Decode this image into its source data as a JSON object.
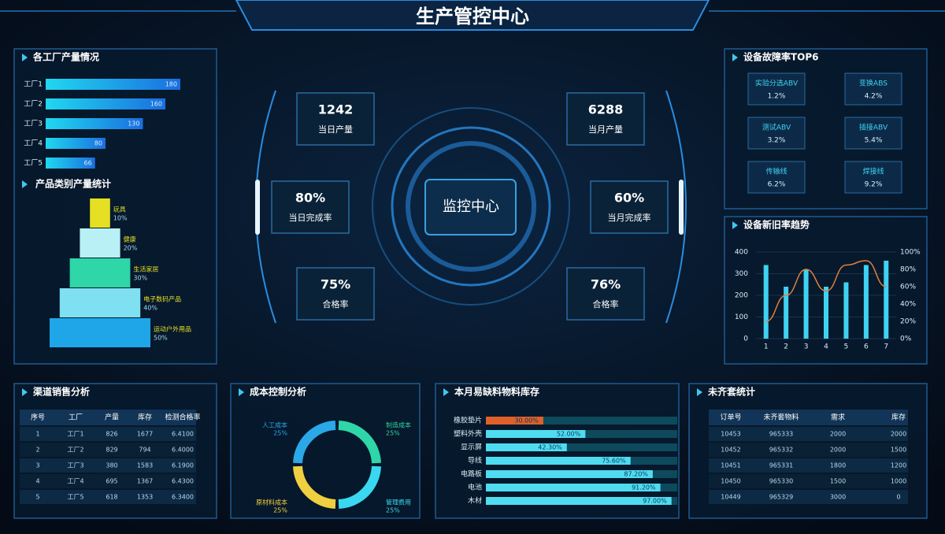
{
  "header": {
    "title": "生产管控中心"
  },
  "factory_output": {
    "title": "各工厂产量情况",
    "chart": {
      "type": "bar",
      "categories": [
        "工厂1",
        "工厂2",
        "工厂3",
        "工厂4",
        "工厂5"
      ],
      "values": [
        180,
        160,
        130,
        80,
        66
      ],
      "xlim": [
        0,
        200
      ]
    }
  },
  "product_category": {
    "title": "产品类别产量统计",
    "chart": {
      "type": "pyramid",
      "categories": [
        "玩具",
        "健康",
        "生活家居",
        "电子数码产品",
        "运动户外用品"
      ],
      "values": [
        10,
        20,
        30,
        40,
        50
      ],
      "value_labels": [
        "10%",
        "20%",
        "30%",
        "40%",
        "50%"
      ],
      "colors": [
        "#e6e024",
        "#b8f0f5",
        "#2ed6a8",
        "#7ee0f0",
        "#1ea6e8"
      ]
    }
  },
  "center": {
    "title": "监控中心",
    "kpis": [
      {
        "value": "1242",
        "label": "当日产量"
      },
      {
        "value": "6288",
        "label": "当月产量"
      },
      {
        "value": "80%",
        "label": "当日完成率"
      },
      {
        "value": "60%",
        "label": "当月完成率"
      },
      {
        "value": "75%",
        "label": "合格率"
      },
      {
        "value": "76%",
        "label": "合格率"
      }
    ]
  },
  "fault_rate": {
    "title": "设备故障率TOP6",
    "items": [
      {
        "name": "实验分选ABV",
        "value": "1.2%"
      },
      {
        "name": "变换ABS",
        "value": "4.2%"
      },
      {
        "name": "测试ABV",
        "value": "3.2%"
      },
      {
        "name": "插接ABV",
        "value": "5.4%"
      },
      {
        "name": "传输线",
        "value": "6.2%"
      },
      {
        "name": "焊接线",
        "value": "9.2%"
      }
    ]
  },
  "trend": {
    "title": "设备新旧率趋势",
    "chart": {
      "type": "bar-line",
      "categories": [
        "1",
        "2",
        "3",
        "4",
        "5",
        "6",
        "7"
      ],
      "series": [
        {
          "color": "#3fd2f2",
          "values": [
            340,
            240,
            320,
            240,
            260,
            340,
            360
          ]
        },
        {
          "color": "#e0803a",
          "axis": "y2",
          "values": [
            20,
            50,
            80,
            55,
            85,
            90,
            60
          ]
        }
      ],
      "ylim": [
        0,
        400
      ],
      "yticks": [
        0,
        100,
        200,
        300,
        400
      ],
      "y2lim": [
        0,
        100
      ],
      "y2ticks": [
        {
          "value": 0,
          "label": "0%"
        },
        {
          "value": 20,
          "label": "20%"
        },
        {
          "value": 40,
          "label": "40%"
        },
        {
          "value": 60,
          "label": "60%"
        },
        {
          "value": 80,
          "label": "80%"
        },
        {
          "value": 100,
          "label": "100%"
        }
      ],
      "grid": true
    }
  },
  "channel_sales": {
    "title": "渠道销售分析",
    "table": {
      "header": [
        "序号",
        "工厂",
        "产量",
        "库存",
        "检测合格率"
      ],
      "rows": [
        [
          "1",
          "工厂1",
          "826",
          "1677",
          "6.4100"
        ],
        [
          "2",
          "工厂2",
          "829",
          "794",
          "6.4000"
        ],
        [
          "3",
          "工厂3",
          "380",
          "1583",
          "6.1900"
        ],
        [
          "4",
          "工厂4",
          "695",
          "1367",
          "6.4300"
        ],
        [
          "5",
          "工厂5",
          "618",
          "1353",
          "6.3400"
        ]
      ]
    }
  },
  "cost_control": {
    "title": "成本控制分析",
    "chart": {
      "type": "donut",
      "categories": [
        "制造成本",
        "管理费用",
        "原材料成本",
        "人工成本"
      ],
      "values": [
        25,
        25,
        25,
        25
      ],
      "value_labels": [
        "25%",
        "25%",
        "25%",
        "25%"
      ],
      "colors": [
        "#2ed6a8",
        "#3ad8f0",
        "#f0d040",
        "#2aa8e8"
      ]
    }
  },
  "material_stock": {
    "title": "本月易缺料物料库存",
    "chart": {
      "type": "bar",
      "categories": [
        "橡胶垫片",
        "塑料外壳",
        "显示屏",
        "导线",
        "电路板",
        "电池",
        "木材"
      ],
      "values": [
        30,
        52,
        42.3,
        75.6,
        87.2,
        91.2,
        97
      ],
      "value_labels": [
        "30.00%",
        "52.00%",
        "42.30%",
        "75.60%",
        "87.20%",
        "91.20%",
        "97.00%"
      ],
      "xlim": [
        0,
        100
      ],
      "colors": [
        "#e0602a",
        "#4fdcf0",
        "#4fdcf0",
        "#4fdcf0",
        "#4fdcf0",
        "#4fdcf0",
        "#4fdcf0"
      ]
    }
  },
  "incomplete_orders": {
    "title": "未齐套统计",
    "table": {
      "header": [
        "订单号",
        "未齐套物料",
        "需求",
        "库存"
      ],
      "rows": [
        [
          "10453",
          "965333",
          "2000",
          "2000"
        ],
        [
          "10452",
          "965332",
          "2000",
          "1500"
        ],
        [
          "10451",
          "965331",
          "1800",
          "1200"
        ],
        [
          "10450",
          "965330",
          "1500",
          "1000"
        ],
        [
          "10449",
          "965329",
          "3000",
          "0"
        ]
      ]
    }
  }
}
